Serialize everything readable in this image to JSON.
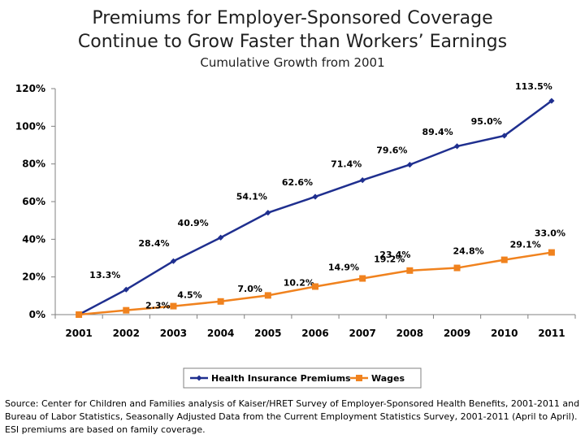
{
  "header": {
    "title_line1": "Premiums for Employer-Sponsored Coverage",
    "title_line2": "Continue to Grow Faster than Workers’ Earnings",
    "subtitle": "Cumulative Growth from 2001"
  },
  "chart_data": {
    "type": "line",
    "title": "Premiums for Employer-Sponsored Coverage Continue to Grow Faster than Workers’ Earnings",
    "subtitle": "Cumulative Growth from 2001",
    "x": [
      "2001",
      "2002",
      "2003",
      "2004",
      "2005",
      "2006",
      "2007",
      "2008",
      "2009",
      "2010",
      "2011"
    ],
    "y_ticks": [
      "0%",
      "20%",
      "40%",
      "60%",
      "80%",
      "100%",
      "120%"
    ],
    "ylim": [
      0,
      120
    ],
    "grid": false,
    "legend_position": "bottom",
    "series": [
      {
        "name": "Health Insurance Premiums",
        "color": "#1f2f8f",
        "marker": "diamond",
        "values": [
          0,
          13.3,
          28.4,
          40.9,
          54.1,
          62.6,
          71.4,
          79.6,
          89.4,
          95.0,
          113.5
        ],
        "labels": [
          "",
          "13.3%",
          "28.4%",
          "40.9%",
          "54.1%",
          "62.6%",
          "71.4%",
          "79.6%",
          "89.4%",
          "95.0%",
          "113.5%"
        ]
      },
      {
        "name": "Wages",
        "color": "#f0821e",
        "marker": "square",
        "values": [
          0,
          2.3,
          4.5,
          7.0,
          10.2,
          14.9,
          19.2,
          23.4,
          24.8,
          29.1,
          33.0
        ],
        "labels": [
          "",
          "2.3%",
          "4.5%",
          "7.0%",
          "10.2%",
          "14.9%",
          "19.2%",
          "23.4%",
          "24.8%",
          "29.1%",
          "33.0%"
        ]
      }
    ]
  },
  "footer": {
    "source": "Source: Center for Children and Families analysis of Kaiser/HRET Survey of Employer-Sponsored Health Benefits, 2001-2011 and Bureau of Labor Statistics, Seasonally Adjusted Data from the Current Employment Statistics Survey, 2001-2011 (April to April). ESI premiums are based on family coverage."
  }
}
